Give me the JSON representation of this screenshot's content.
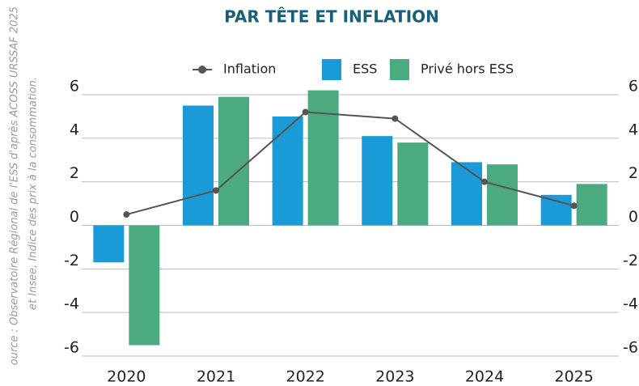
{
  "chart_data": {
    "type": "bar",
    "title": "PAR TÊTE ET INFLATION",
    "source": [
      "ource : Observatoire Régional de l'ESS d'après ACOSS URSSAF 2025",
      "et Insee, Indice des prix à la consommation."
    ],
    "categories": [
      "2020",
      "2021",
      "2022",
      "2023",
      "2024",
      "2025"
    ],
    "series": [
      {
        "name": "Inflation",
        "type": "line",
        "axis": "y2",
        "color": "#555555",
        "values": [
          0.5,
          1.6,
          5.2,
          4.9,
          2.0,
          0.9
        ]
      },
      {
        "name": "ESS",
        "type": "bar",
        "color": "#1a9ad6",
        "values": [
          -1.7,
          5.5,
          5.0,
          4.1,
          2.9,
          1.4
        ]
      },
      {
        "name": "Privé hors ESS",
        "type": "bar",
        "color": "#4caa80",
        "values": [
          -5.5,
          5.9,
          6.2,
          3.8,
          2.8,
          1.9
        ]
      }
    ],
    "ylim": [
      -6,
      6
    ],
    "yticks": [
      6,
      4,
      2,
      0,
      -2,
      -4,
      -6
    ],
    "y2lim": [
      -6,
      6
    ],
    "y2ticks": [
      6,
      4,
      2,
      0,
      -2,
      -4,
      -6
    ],
    "grid": true,
    "legend": "top"
  }
}
